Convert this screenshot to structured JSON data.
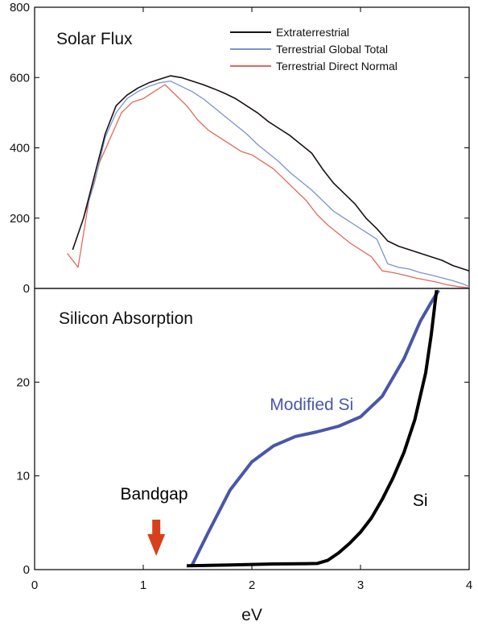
{
  "chart_data": [
    {
      "type": "line",
      "title": "Solar Flux",
      "xlabel": "eV",
      "ylabel": "",
      "xlim": [
        0,
        4
      ],
      "ylim": [
        0,
        800
      ],
      "x_ticks": [
        0,
        1,
        2,
        3,
        4
      ],
      "y_ticks": [
        0,
        200,
        400,
        600,
        800
      ],
      "grid": false,
      "legend_position": "top-right",
      "series": [
        {
          "name": "Extraterrestrial",
          "color": "#1a1111",
          "x": [
            0.35,
            0.45,
            0.55,
            0.65,
            0.75,
            0.85,
            0.95,
            1.05,
            1.15,
            1.25,
            1.35,
            1.45,
            1.55,
            1.65,
            1.75,
            1.85,
            1.95,
            2.05,
            2.15,
            2.25,
            2.35,
            2.45,
            2.55,
            2.65,
            2.75,
            2.85,
            2.95,
            3.05,
            3.15,
            3.25,
            3.35,
            3.45,
            3.55,
            3.65,
            3.75,
            3.85,
            3.95,
            4.0
          ],
          "y": [
            110,
            200,
            320,
            440,
            520,
            550,
            570,
            585,
            595,
            605,
            600,
            590,
            580,
            568,
            555,
            540,
            520,
            500,
            475,
            455,
            435,
            410,
            385,
            340,
            300,
            270,
            240,
            200,
            170,
            135,
            120,
            110,
            100,
            90,
            80,
            65,
            55,
            50
          ]
        },
        {
          "name": "Terrestrial Global Total",
          "color": "#7a93cf",
          "x": [
            0.45,
            0.55,
            0.65,
            0.75,
            0.85,
            0.95,
            1.05,
            1.15,
            1.25,
            1.35,
            1.45,
            1.55,
            1.65,
            1.75,
            1.85,
            1.95,
            2.05,
            2.15,
            2.25,
            2.35,
            2.45,
            2.55,
            2.65,
            2.75,
            2.85,
            2.95,
            3.05,
            3.15,
            3.25,
            3.35,
            3.45,
            3.55,
            3.65,
            3.75,
            3.85,
            3.95,
            4.0
          ],
          "y": [
            200,
            300,
            430,
            500,
            540,
            560,
            575,
            585,
            590,
            575,
            560,
            540,
            515,
            490,
            465,
            440,
            410,
            385,
            360,
            330,
            305,
            280,
            250,
            220,
            200,
            180,
            160,
            140,
            70,
            60,
            55,
            45,
            38,
            30,
            22,
            12,
            5
          ]
        },
        {
          "name": "Terrestrial Direct Normal",
          "color": "#e06a5c",
          "x": [
            0.3,
            0.4,
            0.5,
            0.6,
            0.7,
            0.8,
            0.9,
            1.0,
            1.1,
            1.2,
            1.3,
            1.4,
            1.5,
            1.6,
            1.7,
            1.8,
            1.9,
            2.0,
            2.1,
            2.2,
            2.3,
            2.4,
            2.5,
            2.6,
            2.7,
            2.8,
            2.9,
            3.0,
            3.1,
            3.2,
            3.3,
            3.4,
            3.5,
            3.6,
            3.7,
            3.8,
            3.9,
            4.0
          ],
          "y": [
            100,
            60,
            250,
            360,
            430,
            500,
            530,
            540,
            560,
            580,
            550,
            520,
            480,
            450,
            430,
            410,
            390,
            380,
            360,
            340,
            310,
            280,
            250,
            210,
            180,
            155,
            130,
            110,
            90,
            50,
            45,
            38,
            30,
            24,
            18,
            10,
            5,
            2
          ]
        }
      ]
    },
    {
      "type": "line",
      "title": "Silicon Absorption",
      "xlabel": "eV",
      "ylabel": "",
      "xlim": [
        0,
        4
      ],
      "ylim": [
        0,
        30
      ],
      "x_ticks": [
        0,
        1,
        2,
        3,
        4
      ],
      "y_ticks": [
        0,
        10,
        20
      ],
      "grid": false,
      "series": [
        {
          "name": "Modified Si",
          "color": "#4a56a8",
          "x": [
            1.45,
            1.6,
            1.8,
            2.0,
            2.2,
            2.4,
            2.6,
            2.8,
            3.0,
            3.2,
            3.4,
            3.55,
            3.65,
            3.72
          ],
          "y": [
            0.5,
            4.0,
            8.5,
            11.5,
            13.2,
            14.2,
            14.7,
            15.3,
            16.3,
            18.5,
            22.5,
            26.5,
            28.5,
            29.8
          ]
        },
        {
          "name": "Si",
          "color": "#000000",
          "x": [
            1.4,
            1.6,
            1.8,
            2.0,
            2.2,
            2.4,
            2.6,
            2.7,
            2.8,
            2.9,
            3.0,
            3.1,
            3.2,
            3.3,
            3.4,
            3.5,
            3.6,
            3.65,
            3.7
          ],
          "y": [
            0.4,
            0.45,
            0.5,
            0.55,
            0.6,
            0.62,
            0.65,
            1.0,
            1.8,
            2.8,
            4.0,
            5.5,
            7.5,
            9.8,
            12.5,
            16.0,
            21.0,
            25.0,
            29.8
          ]
        }
      ],
      "annotations": [
        {
          "text": "Modified Si",
          "x": 2.55,
          "y": 17.0,
          "color": "#4a56a8"
        },
        {
          "text": "Si",
          "x": 3.55,
          "y": 6.8,
          "color": "#000000"
        },
        {
          "text": "Bandgap",
          "x": 1.1,
          "y": 7.5,
          "color": "#000000"
        }
      ],
      "marker": {
        "name": "bandgap-arrow",
        "x": 1.12,
        "color": "#d8401c"
      }
    }
  ]
}
